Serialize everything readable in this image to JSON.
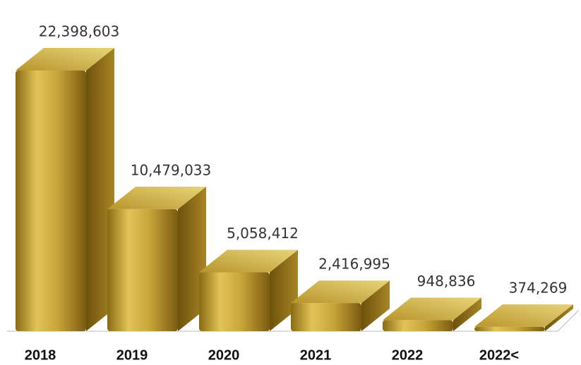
{
  "chart_data": {
    "type": "bar3d",
    "categories": [
      "2018",
      "2019",
      "2020",
      "2021",
      "2022",
      "2022<"
    ],
    "values": [
      22398603,
      10479033,
      5058412,
      2416995,
      948836,
      374269
    ],
    "value_labels": [
      "22,398,603",
      "10,479,033",
      "5,058,412",
      "2,416,995",
      "948,836",
      "374,269"
    ],
    "color": "#c9a93a"
  }
}
